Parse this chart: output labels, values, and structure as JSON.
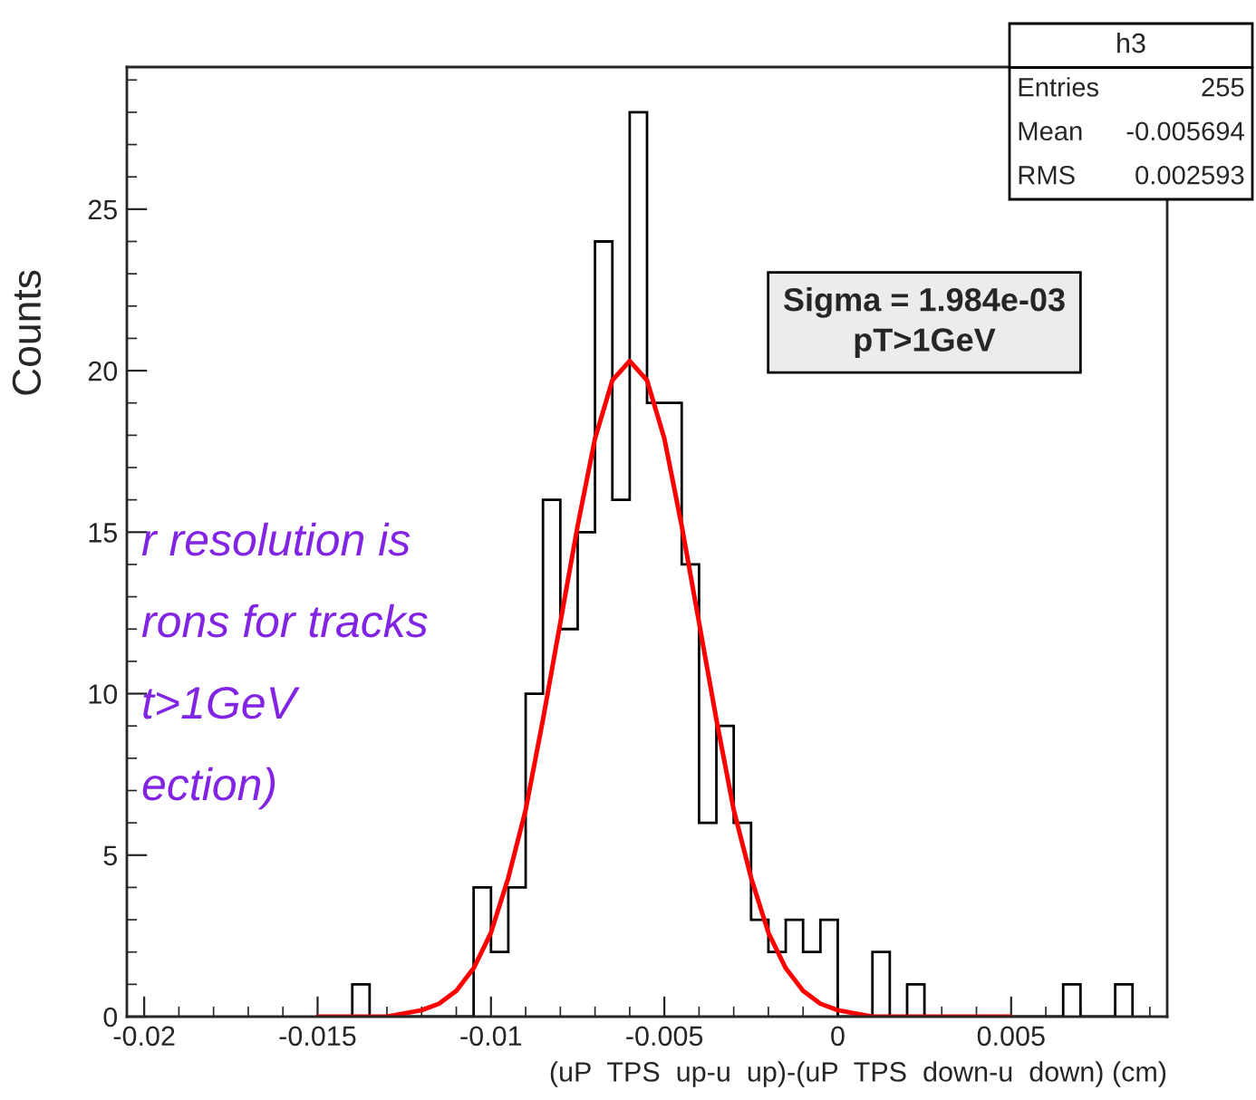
{
  "chart_data": {
    "type": "histogram",
    "xlabel": "(uP  TPS  up-u  up)-(uP  TPS  down-u  down) (cm)",
    "ylabel": "Counts",
    "xlim": [
      -0.0205,
      0.0095
    ],
    "ylim": [
      0,
      29.4
    ],
    "xticks": [
      -0.02,
      -0.015,
      -0.01,
      -0.005,
      0,
      0.005
    ],
    "yticks": [
      0,
      5,
      10,
      15,
      20,
      25
    ],
    "grid": false,
    "legend": false,
    "series": [
      {
        "color": "#000000",
        "bins": [
          -0.0145,
          -0.014,
          -0.0135,
          -0.013,
          -0.0125,
          -0.012,
          -0.0115,
          -0.011,
          -0.0105,
          -0.01,
          -0.0095,
          -0.009,
          -0.0085,
          -0.008,
          -0.0075,
          -0.007,
          -0.0065,
          -0.006,
          -0.0055,
          -0.005,
          -0.0045,
          -0.004,
          -0.0035,
          -0.003,
          -0.0025,
          -0.002,
          -0.0015,
          -0.001,
          -0.0005,
          0,
          0.0005,
          0.001,
          0.0015,
          0.002,
          0.0025,
          0.003,
          0.0035,
          0.004,
          0.0045,
          0.005,
          0.0055,
          0.006,
          0.0065,
          0.007,
          0.0075,
          0.008,
          0.0085
        ],
        "values": [
          0,
          1,
          0,
          0,
          0,
          0,
          0,
          0,
          4,
          2,
          4,
          10,
          16,
          12,
          15,
          24,
          16,
          28,
          19,
          19,
          14,
          6,
          9,
          6,
          3,
          2,
          3,
          2,
          3,
          0,
          0,
          2,
          0,
          1,
          0,
          0,
          0,
          0,
          0,
          0,
          0,
          0,
          1,
          0,
          0,
          1
        ]
      },
      {
        "type": "line",
        "color": "#ff0000",
        "x": [
          -0.015,
          -0.014,
          -0.013,
          -0.012,
          -0.0115,
          -0.011,
          -0.0105,
          -0.01,
          -0.0095,
          -0.009,
          -0.0085,
          -0.008,
          -0.0075,
          -0.007,
          -0.0065,
          -0.006,
          -0.0055,
          -0.005,
          -0.0045,
          -0.004,
          -0.0035,
          -0.003,
          -0.0025,
          -0.002,
          -0.0015,
          -0.001,
          -0.0005,
          0,
          0.001,
          0.002,
          0.003,
          0.004,
          0.005
        ],
        "values": [
          0.0,
          0.0,
          0.0,
          0.2,
          0.4,
          0.8,
          1.5,
          2.6,
          4.3,
          6.4,
          9.2,
          12.2,
          15.2,
          17.9,
          19.7,
          20.3,
          19.7,
          17.9,
          15.2,
          12.2,
          9.2,
          6.4,
          4.3,
          2.6,
          1.5,
          0.8,
          0.4,
          0.2,
          0.0,
          0.0,
          0.0,
          0.0,
          0.0
        ]
      }
    ],
    "annotations": [
      "h3",
      "Entries",
      "255",
      "Mean",
      "-0.005694",
      "RMS",
      "0.002593",
      "Sigma = 1.984e-03\npT>1GeV",
      "r resolution is",
      "rons for tracks",
      "t>1GeV",
      "ection)"
    ]
  }
}
